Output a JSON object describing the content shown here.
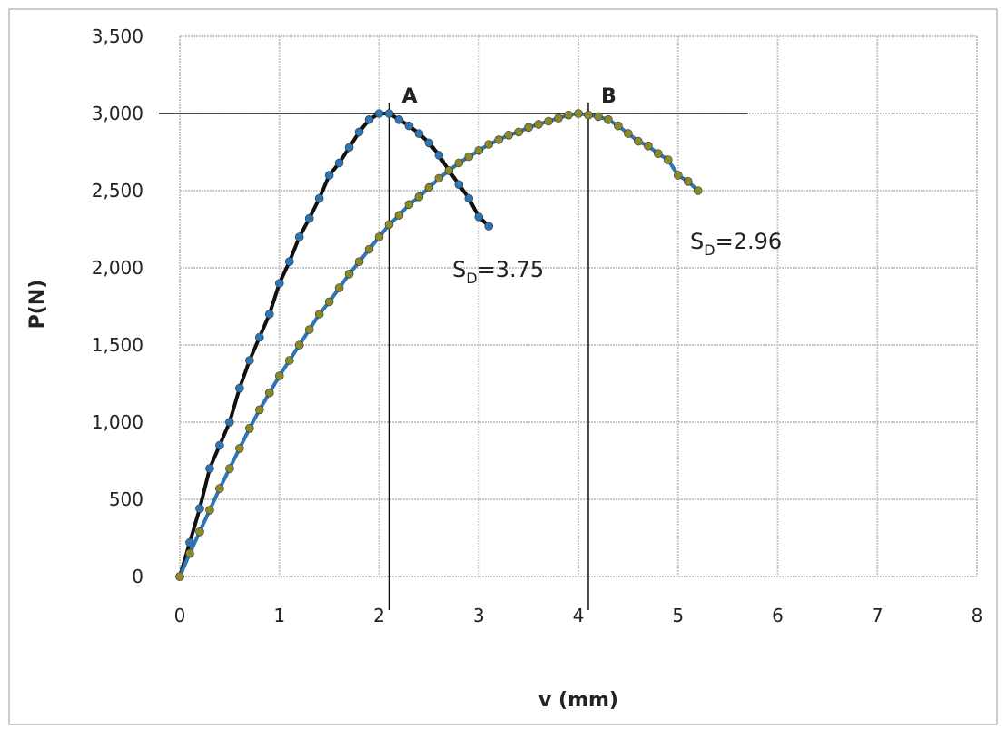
{
  "chart_data": {
    "type": "line",
    "x_label": "v (mm)",
    "y_label": "P(N)",
    "xlim": [
      0,
      8
    ],
    "xticks": [
      0,
      1,
      2,
      3,
      4,
      5,
      6,
      7,
      8
    ],
    "ylim": [
      0,
      3500
    ],
    "yticks": [
      0,
      500,
      {
        "value": 1000,
        "label": "1,000"
      },
      {
        "value": 1500,
        "label": "1,500"
      },
      {
        "value": 2000,
        "label": "2,000"
      },
      {
        "value": 2500,
        "label": "2,500"
      },
      {
        "value": 3000,
        "label": "3,000"
      },
      {
        "value": 3500,
        "label": "3,500"
      }
    ],
    "grid": true,
    "series": [
      {
        "color": "#111111",
        "marker_color": "#2e75b6",
        "x": [
          0,
          0.1,
          0.2,
          0.3,
          0.4,
          0.5,
          0.6,
          0.7,
          0.8,
          0.9,
          1.0,
          1.1,
          1.2,
          1.3,
          1.4,
          1.5,
          1.6,
          1.7,
          1.8,
          1.9,
          2.0,
          2.1,
          2.2,
          2.3,
          2.4,
          2.5,
          2.6,
          2.7,
          2.8,
          2.9,
          3.0,
          3.1
        ],
        "values": [
          0,
          220,
          440,
          700,
          850,
          1000,
          1220,
          1400,
          1550,
          1700,
          1900,
          2040,
          2200,
          2320,
          2450,
          2600,
          2680,
          2780,
          2880,
          2960,
          3000,
          3000,
          2960,
          2920,
          2870,
          2810,
          2730,
          2630,
          2540,
          2450,
          2330,
          2270
        ]
      },
      {
        "color": "#2e75b6",
        "marker_color": "#8a8a2a",
        "x": [
          0,
          0.1,
          0.2,
          0.3,
          0.4,
          0.5,
          0.6,
          0.7,
          0.8,
          0.9,
          1.0,
          1.1,
          1.2,
          1.3,
          1.4,
          1.5,
          1.6,
          1.7,
          1.8,
          1.9,
          2.0,
          2.1,
          2.2,
          2.3,
          2.4,
          2.5,
          2.6,
          2.7,
          2.8,
          2.9,
          3.0,
          3.1,
          3.2,
          3.3,
          3.4,
          3.5,
          3.6,
          3.7,
          3.8,
          3.9,
          4.0,
          4.1,
          4.2,
          4.3,
          4.4,
          4.5,
          4.6,
          4.7,
          4.8,
          4.9,
          5.0,
          5.1,
          5.2
        ],
        "values": [
          0,
          150,
          290,
          430,
          570,
          700,
          830,
          960,
          1080,
          1190,
          1300,
          1400,
          1500,
          1600,
          1700,
          1780,
          1870,
          1960,
          2040,
          2120,
          2200,
          2280,
          2340,
          2410,
          2460,
          2520,
          2580,
          2630,
          2680,
          2720,
          2760,
          2800,
          2830,
          2860,
          2880,
          2910,
          2930,
          2950,
          2970,
          2990,
          3000,
          2990,
          2980,
          2960,
          2920,
          2870,
          2820,
          2790,
          2740,
          2700,
          2600,
          2560,
          2500
        ]
      }
    ],
    "reference_y": 3000,
    "peaks": [
      {
        "label": "A",
        "x": 2.1
      },
      {
        "label": "B",
        "x": 4.1
      }
    ],
    "annotations": [
      {
        "base": "S",
        "sub": "D",
        "text": "=3.75"
      },
      {
        "base": "S",
        "sub": "D",
        "text": "=2.96"
      }
    ]
  }
}
